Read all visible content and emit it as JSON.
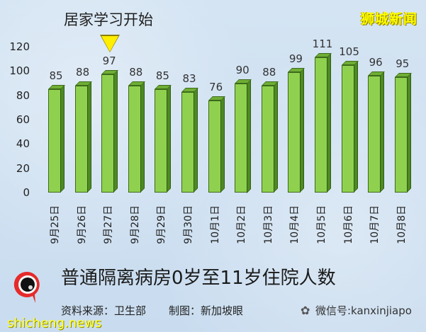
{
  "header": {
    "event_label": "居家学习开始",
    "brand": "狮城新闻"
  },
  "chart_data": {
    "type": "bar",
    "title": "普通隔离病房0岁至11岁住院人数",
    "xlabel": "",
    "ylabel": "",
    "ylim": [
      0,
      120
    ],
    "yticks": [
      0,
      20,
      40,
      60,
      80,
      100,
      120
    ],
    "categories": [
      "9月25日",
      "9月26日",
      "9月27日",
      "9月28日",
      "9月29日",
      "9月30日",
      "10月1日",
      "10月2日",
      "10月3日",
      "10月4日",
      "10月5日",
      "10月6日",
      "10月7日",
      "10月8日"
    ],
    "values": [
      85,
      88,
      97,
      88,
      85,
      83,
      76,
      90,
      88,
      99,
      111,
      105,
      96,
      95
    ],
    "annotations": [
      {
        "category": "9月27日",
        "marker": "yellow-down-triangle",
        "text": "居家学习开始"
      }
    ],
    "bar_color": "#8fd14f",
    "grid": false,
    "legend": "none"
  },
  "footer": {
    "title": "普通隔离病房0岁至11岁住院人数",
    "source": "资料来源：卫生部",
    "credit": "制图：新加坡眼",
    "wechat": "微信号:kanxinjiapo",
    "site": "shicheng.news",
    "logo_text": "新加坡眼"
  },
  "colors": {
    "bar": "#8fd14f",
    "bar_side": "#4e8a23",
    "marker": "#ffee00",
    "brand": "#ffff00",
    "background": "#cfe0f0"
  }
}
